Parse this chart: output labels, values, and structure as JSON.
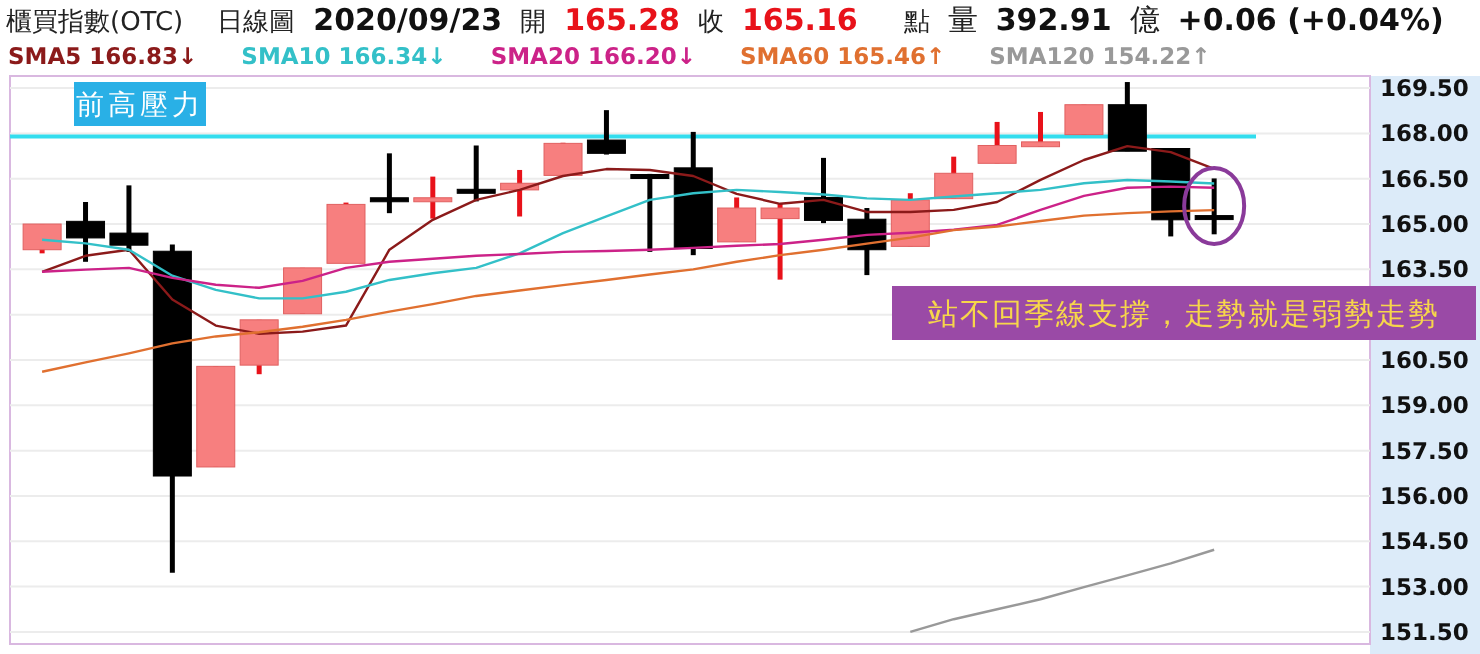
{
  "chart_data": {
    "type": "candlestick",
    "title": "櫃買指數(OTC)",
    "subtitle": "日線圖",
    "annotations": [
      "2020/09/23",
      "開",
      "165.28",
      "收",
      "165.16",
      "點",
      "量",
      "392.91",
      "億",
      "+0.06 (+0.04%)",
      "站不回季線支撐，走勢就是弱勢走勢"
    ],
    "categories": [
      null,
      null,
      null,
      null,
      null,
      null,
      null,
      null,
      null,
      null,
      null,
      null,
      null,
      null,
      null,
      null,
      null,
      null,
      null,
      null,
      null,
      null,
      null,
      null,
      null,
      null,
      null,
      null
    ],
    "ohlc": [
      [
        164.15,
        165.0,
        164.03,
        165.0
      ],
      [
        165.09,
        165.73,
        163.75,
        164.54
      ],
      [
        164.7,
        166.28,
        164.08,
        164.3
      ],
      [
        164.1,
        164.32,
        153.46,
        156.66
      ],
      [
        156.96,
        160.29,
        156.96,
        160.29
      ],
      [
        160.33,
        161.83,
        160.03,
        161.83
      ],
      [
        162.03,
        163.55,
        162.03,
        163.55
      ],
      [
        163.7,
        165.71,
        163.7,
        165.65
      ],
      [
        165.87,
        167.34,
        165.36,
        165.83
      ],
      [
        165.83,
        166.57,
        165.18,
        165.87
      ],
      [
        166.15,
        167.6,
        165.75,
        166.1
      ],
      [
        166.13,
        166.79,
        165.25,
        166.35
      ],
      [
        166.61,
        167.69,
        166.61,
        167.67
      ],
      [
        167.78,
        168.77,
        167.3,
        167.34
      ],
      [
        166.64,
        166.66,
        164.08,
        166.6
      ],
      [
        166.86,
        168.05,
        163.97,
        164.19
      ],
      [
        164.41,
        165.88,
        164.41,
        165.53
      ],
      [
        165.18,
        165.67,
        163.16,
        165.53
      ],
      [
        165.88,
        167.19,
        165.03,
        165.12
      ],
      [
        165.16,
        165.53,
        163.31,
        164.15
      ],
      [
        164.26,
        166.02,
        164.26,
        165.8
      ],
      [
        165.84,
        167.23,
        165.84,
        166.68
      ],
      [
        167.01,
        168.38,
        167.01,
        167.6
      ],
      [
        167.56,
        168.71,
        167.56,
        167.72
      ],
      [
        167.96,
        168.95,
        167.96,
        168.95
      ],
      [
        168.95,
        169.7,
        167.41,
        167.41
      ],
      [
        167.5,
        167.5,
        164.59,
        165.14
      ],
      [
        165.28,
        166.51,
        164.66,
        165.16
      ]
    ],
    "series": [
      {
        "name": "SMA5 166.83↓",
        "type": "line",
        "color": "#8b1a1a",
        "values": [
          163.42,
          163.95,
          164.15,
          162.5,
          161.64,
          161.37,
          161.44,
          161.64,
          164.15,
          165.14,
          165.8,
          166.13,
          166.59,
          166.82,
          166.79,
          166.59,
          166.0,
          165.67,
          165.8,
          165.4,
          165.4,
          165.47,
          165.73,
          166.46,
          167.12,
          167.58,
          167.38,
          166.83
        ]
      },
      {
        "name": "SMA10 166.34↓",
        "type": "line",
        "color": "#33c0c8",
        "values": [
          164.48,
          164.36,
          164.15,
          163.29,
          162.82,
          162.54,
          162.54,
          162.76,
          163.15,
          163.37,
          163.55,
          164.03,
          164.7,
          165.25,
          165.8,
          166.02,
          166.13,
          166.06,
          165.98,
          165.85,
          165.8,
          165.91,
          166.02,
          166.13,
          166.35,
          166.46,
          166.41,
          166.34
        ]
      },
      {
        "name": "SMA20 166.20↓",
        "type": "line",
        "color": "#cc2288",
        "values": [
          163.42,
          163.49,
          163.55,
          163.22,
          162.99,
          162.89,
          163.12,
          163.55,
          163.75,
          163.85,
          163.95,
          164.01,
          164.08,
          164.11,
          164.15,
          164.21,
          164.28,
          164.34,
          164.48,
          164.64,
          164.71,
          164.81,
          164.97,
          165.47,
          165.93,
          166.2,
          166.24,
          166.2
        ]
      },
      {
        "name": "SMA60 165.46↑",
        "type": "line",
        "color": "#e07030",
        "values": [
          160.11,
          160.42,
          160.72,
          161.05,
          161.28,
          161.42,
          161.6,
          161.83,
          162.1,
          162.35,
          162.62,
          162.8,
          162.98,
          163.15,
          163.33,
          163.5,
          163.75,
          163.97,
          164.15,
          164.35,
          164.55,
          164.8,
          164.92,
          165.1,
          165.28,
          165.36,
          165.42,
          165.46
        ]
      },
      {
        "name": "SMA120 154.22↑",
        "type": "line",
        "color": "#999999",
        "values": [
          null,
          null,
          null,
          null,
          null,
          null,
          null,
          null,
          null,
          null,
          null,
          null,
          null,
          null,
          null,
          null,
          null,
          null,
          null,
          null,
          151.5,
          151.92,
          152.25,
          152.58,
          152.98,
          153.37,
          153.77,
          154.22
        ]
      }
    ],
    "ylim": [
      151.1,
      169.9
    ],
    "yticks": [
      {
        "value": 169.5,
        "label": "169.50"
      },
      {
        "value": 168,
        "label": "168.00"
      },
      {
        "value": 166.5,
        "label": "166.50"
      },
      {
        "value": 165,
        "label": "165.00"
      },
      {
        "value": 163.5,
        "label": "163.50"
      },
      {
        "value": 162,
        "label": null
      },
      {
        "value": 160.5,
        "label": "160.50"
      },
      {
        "value": 159,
        "label": "159.00"
      },
      {
        "value": 157.5,
        "label": "157.50"
      },
      {
        "value": 156,
        "label": "156.00"
      },
      {
        "value": 154.5,
        "label": "154.50"
      },
      {
        "value": 153,
        "label": "153.00"
      },
      {
        "value": 151.5,
        "label": "151.50"
      }
    ],
    "grid": "y",
    "legend": "top",
    "tick_labels": "y",
    "ref_lines": [
      {
        "axis": "y",
        "value": 167.9,
        "label": "前高壓力",
        "color": "#33ddee"
      }
    ]
  }
}
